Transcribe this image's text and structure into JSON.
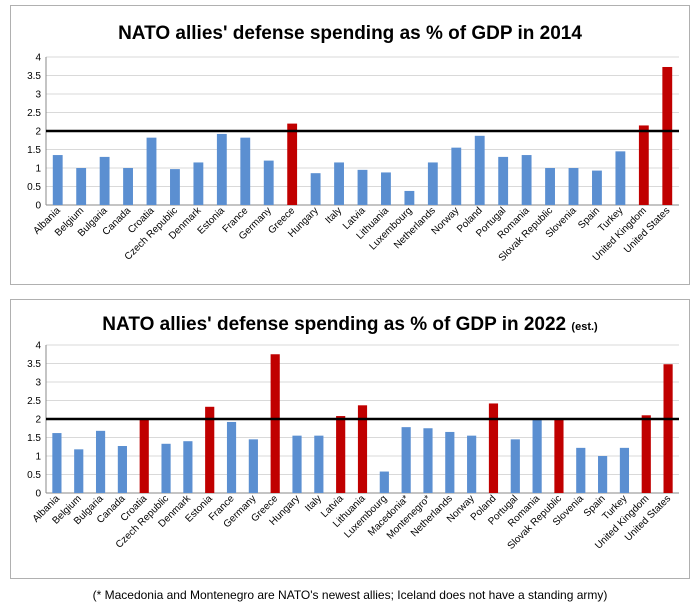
{
  "footnote": "(* Macedonia and Montenegro are NATO's newest allies; Iceland does not have a standing army)",
  "colors": {
    "blue": "#5b8fd1",
    "red": "#c00000",
    "reference": "#000000",
    "grid": "#d9d9d9"
  },
  "chart_data": [
    {
      "type": "bar",
      "title": "NATO allies' defense spending as % of GDP in 2014",
      "subtitle": "",
      "ylim": [
        0,
        4
      ],
      "yticks": [
        "0",
        "0.5",
        "1",
        "1.5",
        "2",
        "2.5",
        "3",
        "3.5",
        "4"
      ],
      "reference_line": 2,
      "grid": true,
      "categories": [
        "Albania",
        "Belgium",
        "Bulgaria",
        "Canada",
        "Croatia",
        "Czech Republic",
        "Denmark",
        "Estonia",
        "France",
        "Germany",
        "Greece",
        "Hungary",
        "Italy",
        "Latvia",
        "Lithuania",
        "Luxembourg",
        "Netherlands",
        "Norway",
        "Poland",
        "Portugal",
        "Romania",
        "Slovak Republic",
        "Slovenia",
        "Spain",
        "Turkey",
        "United Kingdom",
        "United States"
      ],
      "values": [
        1.35,
        1.0,
        1.3,
        1.0,
        1.82,
        0.97,
        1.15,
        1.92,
        1.82,
        1.2,
        2.2,
        0.86,
        1.15,
        0.95,
        0.88,
        0.38,
        1.15,
        1.55,
        1.87,
        1.3,
        1.35,
        1.0,
        1.0,
        0.93,
        1.45,
        2.15,
        3.73
      ],
      "highlight": [
        false,
        false,
        false,
        false,
        false,
        false,
        false,
        false,
        false,
        false,
        true,
        false,
        false,
        false,
        false,
        false,
        false,
        false,
        false,
        false,
        false,
        false,
        false,
        false,
        false,
        true,
        true
      ]
    },
    {
      "type": "bar",
      "title": "NATO allies' defense spending as % of GDP in 2022",
      "subtitle": "(est.)",
      "ylim": [
        0,
        4
      ],
      "yticks": [
        "0",
        "0.5",
        "1",
        "1.5",
        "2",
        "2.5",
        "3",
        "3.5",
        "4"
      ],
      "reference_line": 2,
      "grid": true,
      "categories": [
        "Albania",
        "Belgium",
        "Bulgaria",
        "Canada",
        "Croatia",
        "Czech Republic",
        "Denmark",
        "Estonia",
        "France",
        "Germany",
        "Greece",
        "Hungary",
        "Italy",
        "Latvia",
        "Lithuania",
        "Luxembourg",
        "Macedonia*",
        "Montenegro*",
        "Netherlands",
        "Norway",
        "Poland",
        "Portugal",
        "Romania",
        "Slovak Republic",
        "Slovenia",
        "Spain",
        "Turkey",
        "United Kingdom",
        "United States"
      ],
      "values": [
        1.62,
        1.18,
        1.68,
        1.27,
        2.0,
        1.33,
        1.4,
        2.33,
        1.92,
        1.45,
        3.75,
        1.55,
        1.55,
        2.08,
        2.37,
        0.58,
        1.78,
        1.75,
        1.65,
        1.55,
        2.42,
        1.45,
        2.0,
        2.0,
        1.22,
        1.0,
        1.22,
        2.1,
        3.48
      ],
      "highlight": [
        false,
        false,
        false,
        false,
        true,
        false,
        false,
        true,
        false,
        false,
        true,
        false,
        false,
        true,
        true,
        false,
        false,
        false,
        false,
        false,
        true,
        false,
        false,
        true,
        false,
        false,
        false,
        true,
        true
      ]
    }
  ]
}
